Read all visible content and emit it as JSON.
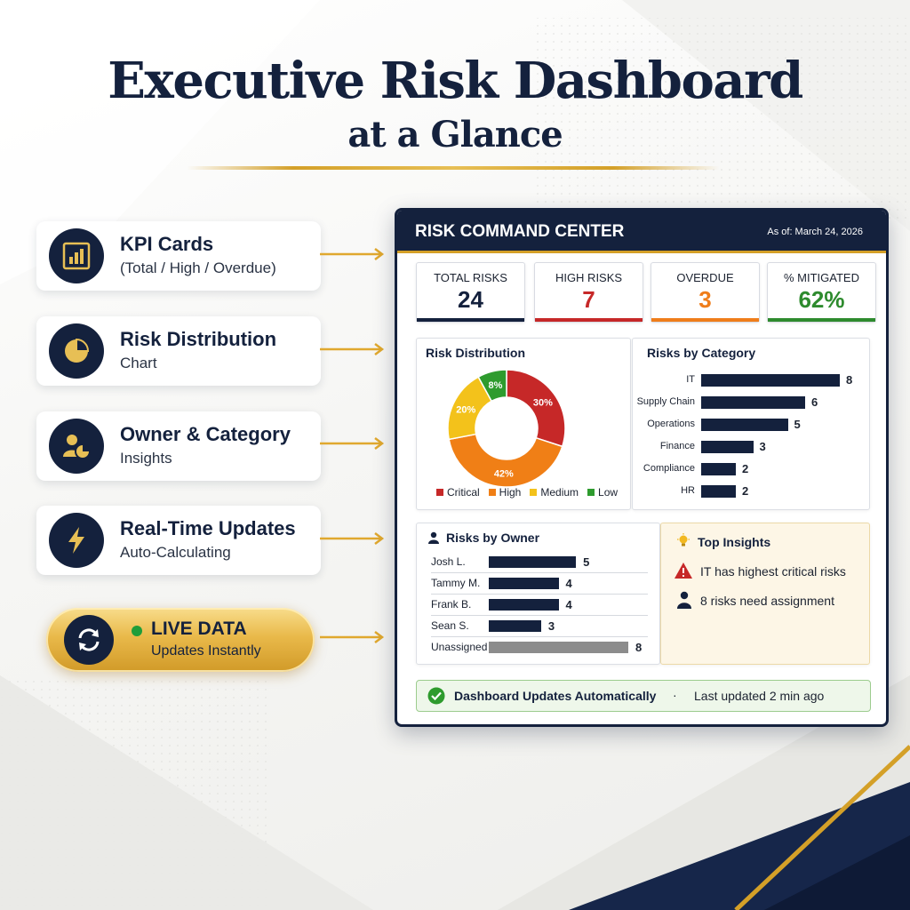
{
  "title": "Executive Risk Dashboard",
  "subtitle": "at a Glance",
  "features": [
    {
      "title": "KPI Cards",
      "subtitle": "(Total / High / Overdue)",
      "icon": "bar-chart-icon"
    },
    {
      "title": "Risk Distribution",
      "subtitle": "Chart",
      "icon": "pie-chart-icon"
    },
    {
      "title": "Owner & Category",
      "subtitle": "Insights",
      "icon": "owner-chart-icon"
    },
    {
      "title": "Real-Time Updates",
      "subtitle": "Auto-Calculating",
      "icon": "lightning-icon"
    }
  ],
  "live": {
    "title": "LIVE DATA",
    "subtitle": "Updates Instantly",
    "icon": "refresh-icon",
    "status_color": "#1f9d3a"
  },
  "dashboard": {
    "title": "RISK COMMAND CENTER",
    "as_of": "As of: March 24, 2026",
    "kpis": [
      {
        "label": "TOTAL RISKS",
        "value": "24",
        "color": "#14213d"
      },
      {
        "label": "HIGH RISKS",
        "value": "7",
        "color": "#c62828"
      },
      {
        "label": "OVERDUE",
        "value": "3",
        "color": "#ef7d1a"
      },
      {
        "label": "% MITIGATED",
        "value": "62%",
        "color": "#2e8b2e"
      }
    ],
    "distribution": {
      "title": "Risk Distribution",
      "segments": [
        {
          "label": "Critical",
          "percent": 30,
          "display": "30%",
          "color": "#c62828"
        },
        {
          "label": "High",
          "percent": 42,
          "display": "42%",
          "color": "#f07f16"
        },
        {
          "label": "Medium",
          "percent": 20,
          "display": "20%",
          "color": "#f3c21b"
        },
        {
          "label": "Low",
          "percent": 8,
          "display": "8%",
          "color": "#2e9b2e"
        }
      ]
    },
    "category": {
      "title": "Risks by Category",
      "items": [
        {
          "label": "IT",
          "value": 8
        },
        {
          "label": "Supply Chain",
          "value": 6
        },
        {
          "label": "Operations",
          "value": 5
        },
        {
          "label": "Finance",
          "value": 3
        },
        {
          "label": "Compliance",
          "value": 2
        },
        {
          "label": "HR",
          "value": 2
        }
      ]
    },
    "owner": {
      "title": "Risks by Owner",
      "items": [
        {
          "label": "Josh L.",
          "value": 5,
          "color": "#14213d"
        },
        {
          "label": "Tammy M.",
          "value": 4,
          "color": "#14213d"
        },
        {
          "label": "Frank B.",
          "value": 4,
          "color": "#14213d"
        },
        {
          "label": "Sean S.",
          "value": 3,
          "color": "#14213d"
        },
        {
          "label": "Unassigned",
          "value": 8,
          "color": "#8c8c8c"
        }
      ]
    },
    "insights": {
      "title": "Top Insights",
      "items": [
        {
          "text": "IT has highest critical risks",
          "icon": "warning-icon"
        },
        {
          "text": "8 risks need assignment",
          "icon": "person-icon"
        }
      ]
    },
    "footer": {
      "status": "Dashboard Updates Automatically",
      "separator": "·",
      "updated": "Last updated 2 min ago"
    }
  },
  "colors": {
    "navy": "#14213d",
    "gold": "#d4a028"
  }
}
